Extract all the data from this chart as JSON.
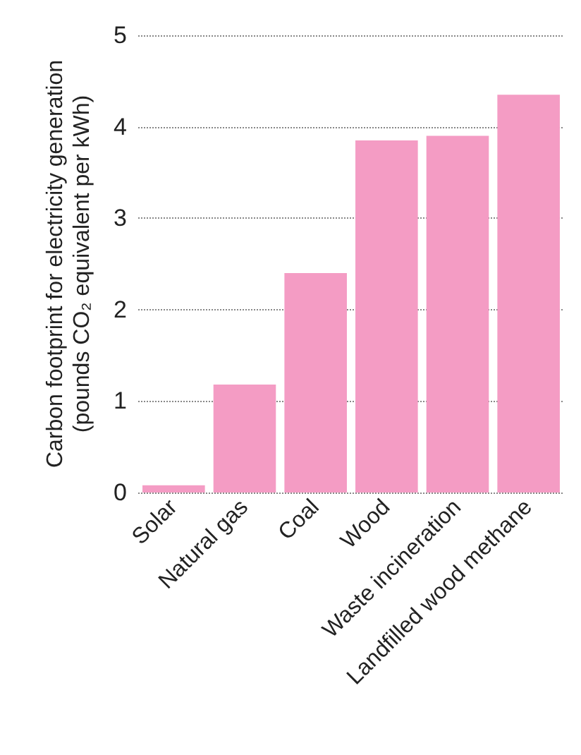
{
  "chart_data": {
    "type": "bar",
    "ylabel": "Carbon footprint for electricity generation\n(pounds CO₂ equivalent per kWh)",
    "categories": [
      "Solar",
      "Natural gas",
      "Coal",
      "Wood",
      "Waste incineration",
      "Landfilled wood methane"
    ],
    "values": [
      0.08,
      1.18,
      2.4,
      3.85,
      3.9,
      4.35
    ],
    "color": "#f49cc4",
    "ylim": [
      0,
      5
    ],
    "yticks": [
      0,
      1,
      2,
      3,
      4,
      5
    ],
    "grid": "y"
  }
}
